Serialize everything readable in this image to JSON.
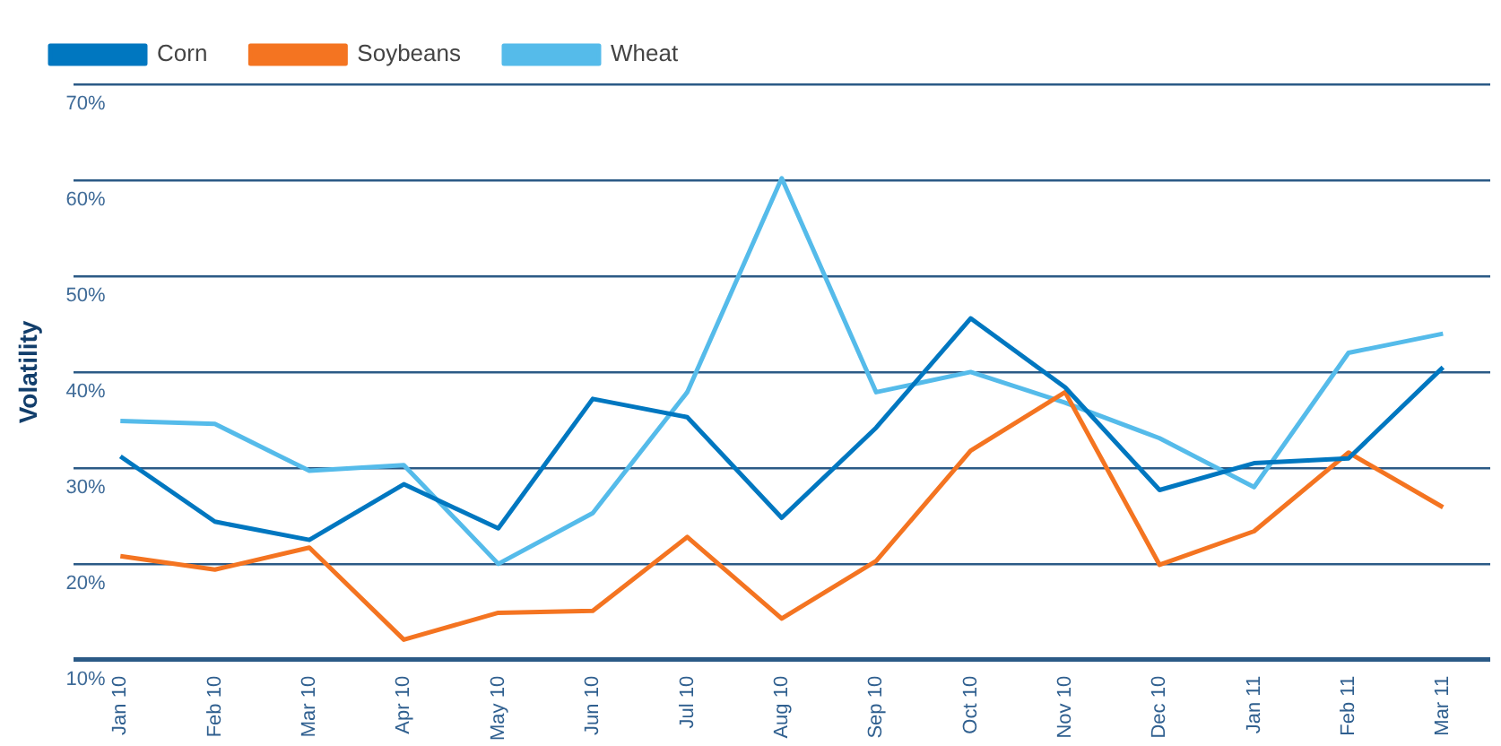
{
  "chart_data": {
    "type": "line",
    "ylabel": "Volatility",
    "categories": [
      "Jan 10",
      "Feb 10",
      "Mar 10",
      "Apr 10",
      "May 10",
      "Jun 10",
      "Jul 10",
      "Aug 10",
      "Sep 10",
      "Oct 10",
      "Nov 10",
      "Dec 10",
      "Jan 11",
      "Feb 11",
      "Mar 11"
    ],
    "series": [
      {
        "name": "Corn",
        "color": "#0077c0",
        "values": [
          31.2,
          24.4,
          22.5,
          28.3,
          23.7,
          37.2,
          35.3,
          24.8,
          34.2,
          45.6,
          38.4,
          27.7,
          30.5,
          31.0,
          40.5
        ]
      },
      {
        "name": "Soybeans",
        "color": "#f47421",
        "values": [
          20.8,
          19.4,
          21.7,
          12.1,
          14.9,
          15.1,
          22.8,
          14.3,
          20.3,
          31.8,
          37.9,
          19.9,
          23.4,
          31.6,
          25.9
        ]
      },
      {
        "name": "Wheat",
        "color": "#55bbea",
        "values": [
          34.9,
          34.6,
          29.7,
          30.3,
          20.0,
          25.3,
          37.9,
          60.2,
          37.9,
          40.0,
          36.8,
          33.1,
          28.0,
          42.0,
          44.0
        ]
      }
    ],
    "ylim": [
      10,
      70
    ],
    "yticks": [
      {
        "value": 10,
        "label": "10%"
      },
      {
        "value": 20,
        "label": "20%"
      },
      {
        "value": 30,
        "label": "30%"
      },
      {
        "value": 40,
        "label": "40%"
      },
      {
        "value": 50,
        "label": "50%"
      },
      {
        "value": 60,
        "label": "60%"
      },
      {
        "value": 70,
        "label": "70%"
      }
    ],
    "grid": "y",
    "legend": "top left",
    "marker": "none",
    "line_style": "solid"
  }
}
